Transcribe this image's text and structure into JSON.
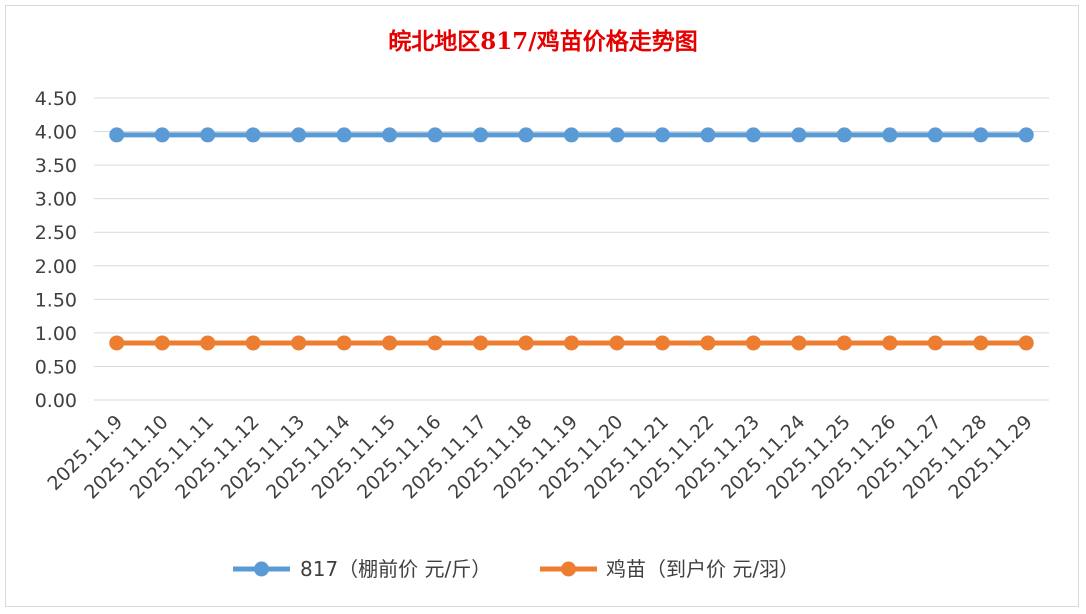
{
  "chart_data": {
    "type": "line",
    "title": "皖北地区817/鸡苗价格走势图",
    "xlabel": "",
    "ylabel": "",
    "ylim": [
      0,
      4.5
    ],
    "yticks": [
      "0.00",
      "0.50",
      "1.00",
      "1.50",
      "2.00",
      "2.50",
      "3.00",
      "3.50",
      "4.00",
      "4.50"
    ],
    "grid": true,
    "legend_position": "bottom",
    "categories": [
      "2025.11.9",
      "2025.11.10",
      "2025.11.11",
      "2025.11.12",
      "2025.11.13",
      "2025.11.14",
      "2025.11.15",
      "2025.11.16",
      "2025.11.17",
      "2025.11.18",
      "2025.11.19",
      "2025.11.20",
      "2025.11.21",
      "2025.11.22",
      "2025.11.23",
      "2025.11.24",
      "2025.11.25",
      "2025.11.26",
      "2025.11.27",
      "2025.11.28",
      "2025.11.29"
    ],
    "series": [
      {
        "name": "817（棚前价 元/斤）",
        "color": "#5b9bd5",
        "values": [
          3.95,
          3.95,
          3.95,
          3.95,
          3.95,
          3.95,
          3.95,
          3.95,
          3.95,
          3.95,
          3.95,
          3.95,
          3.95,
          3.95,
          3.95,
          3.95,
          3.95,
          3.95,
          3.95,
          3.95,
          3.95
        ]
      },
      {
        "name": "鸡苗（到户价 元/羽）",
        "color": "#ed7d31",
        "values": [
          0.85,
          0.85,
          0.85,
          0.85,
          0.85,
          0.85,
          0.85,
          0.85,
          0.85,
          0.85,
          0.85,
          0.85,
          0.85,
          0.85,
          0.85,
          0.85,
          0.85,
          0.85,
          0.85,
          0.85,
          0.85
        ]
      }
    ]
  }
}
